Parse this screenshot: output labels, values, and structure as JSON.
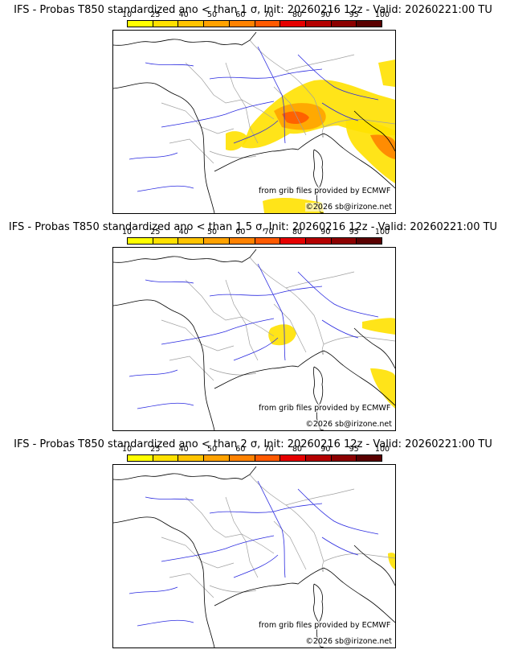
{
  "panels": [
    {
      "title": "IFS - Probas T850  standardized ano < than 1 σ, Init: 20260216 12z - Valid: 20260221:00 TU",
      "threshold_sigma": 1
    },
    {
      "title": "IFS - Probas T850  standardized ano < than 1.5 σ, Init: 20260216 12z - Valid: 20260221:00 TU",
      "threshold_sigma": 1.5
    },
    {
      "title": "IFS - Probas T850  standardized ano < than 2 σ, Init: 20260216 12z - Valid: 20260221:00 TU",
      "threshold_sigma": 2
    }
  ],
  "colorbar": {
    "ticks": [
      "10",
      "25",
      "40",
      "50",
      "60",
      "70",
      "80",
      "90",
      "95",
      "100"
    ],
    "colors": [
      "#ffff00",
      "#ffe100",
      "#ffc400",
      "#ffa200",
      "#ff8200",
      "#ff5a00",
      "#e60000",
      "#b40000",
      "#8c0000",
      "#5a0000"
    ]
  },
  "credits": {
    "source": "from grib files provided by ECMWF",
    "copyright": "©2026 sb@irizone.net"
  },
  "colors": {
    "coast": "#000000",
    "rivers": "#2a2ae0",
    "borders": "#a0a0a0"
  }
}
